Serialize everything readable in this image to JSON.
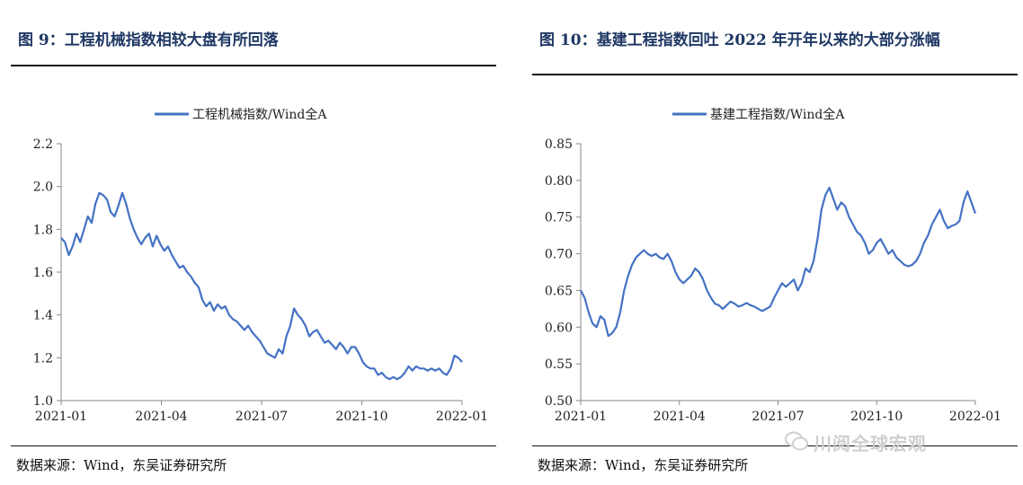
{
  "left_panel": {
    "title": "图 9：工程机械指数相较大盘有所回落",
    "source": "数据来源：Wind，东吴证券研究所"
  },
  "right_panel": {
    "title": "图 10：基建工程指数回吐 2022 年开年以来的大部分涨幅",
    "source": "数据来源：Wind，东吴证券研究所"
  },
  "watermark": "川阅全球宏观",
  "colors": {
    "line": "#4472c4",
    "title": "#1f3864",
    "axis": "#888888"
  },
  "chart_data": [
    {
      "type": "line",
      "legend": "工程机械指数/Wind全A",
      "legend_position": "top-center",
      "grid": false,
      "ylim": [
        1.0,
        2.2
      ],
      "yticks": [
        "2.2",
        "2.0",
        "1.8",
        "1.6",
        "1.4",
        "1.2",
        "1.0"
      ],
      "xticks": [
        "2021-01",
        "2021-04",
        "2021-07",
        "2021-10",
        "2022-01"
      ],
      "x_start": "2021-01-04",
      "x_end": "2022-01-24",
      "series": [
        {
          "values": [
            1.76,
            1.74,
            1.68,
            1.72,
            1.78,
            1.74,
            1.8,
            1.86,
            1.83,
            1.92,
            1.97,
            1.96,
            1.94,
            1.88,
            1.86,
            1.91,
            1.97,
            1.92,
            1.85,
            1.8,
            1.76,
            1.73,
            1.76,
            1.78,
            1.72,
            1.77,
            1.73,
            1.7,
            1.72,
            1.68,
            1.65,
            1.62,
            1.63,
            1.6,
            1.58,
            1.55,
            1.53,
            1.47,
            1.44,
            1.46,
            1.42,
            1.45,
            1.43,
            1.44,
            1.4,
            1.38,
            1.37,
            1.35,
            1.33,
            1.35,
            1.32,
            1.3,
            1.28,
            1.25,
            1.22,
            1.21,
            1.2,
            1.24,
            1.22,
            1.3,
            1.35,
            1.43,
            1.4,
            1.38,
            1.35,
            1.3,
            1.32,
            1.33,
            1.3,
            1.27,
            1.28,
            1.26,
            1.24,
            1.27,
            1.25,
            1.22,
            1.25,
            1.25,
            1.22,
            1.18,
            1.16,
            1.15,
            1.15,
            1.12,
            1.13,
            1.11,
            1.1,
            1.11,
            1.1,
            1.11,
            1.13,
            1.16,
            1.14,
            1.16,
            1.15,
            1.15,
            1.14,
            1.15,
            1.14,
            1.15,
            1.13,
            1.12,
            1.15,
            1.21,
            1.2,
            1.18
          ]
        }
      ]
    },
    {
      "type": "line",
      "legend": "基建工程指数/Wind全A",
      "legend_position": "top-center",
      "grid": false,
      "ylim": [
        0.5,
        0.85
      ],
      "yticks": [
        "0.85",
        "0.80",
        "0.75",
        "0.70",
        "0.65",
        "0.60",
        "0.55",
        "0.50"
      ],
      "xticks": [
        "2021-01",
        "2021-04",
        "2021-07",
        "2021-10",
        "2022-01"
      ],
      "x_start": "2021-01-04",
      "x_end": "2022-01-24",
      "series": [
        {
          "values": [
            0.65,
            0.64,
            0.62,
            0.605,
            0.6,
            0.615,
            0.61,
            0.588,
            0.592,
            0.6,
            0.62,
            0.65,
            0.67,
            0.685,
            0.695,
            0.7,
            0.705,
            0.7,
            0.697,
            0.7,
            0.695,
            0.693,
            0.7,
            0.69,
            0.675,
            0.665,
            0.66,
            0.665,
            0.67,
            0.68,
            0.675,
            0.665,
            0.65,
            0.64,
            0.632,
            0.63,
            0.625,
            0.63,
            0.635,
            0.632,
            0.628,
            0.63,
            0.633,
            0.63,
            0.628,
            0.625,
            0.622,
            0.625,
            0.628,
            0.64,
            0.65,
            0.66,
            0.655,
            0.66,
            0.665,
            0.65,
            0.66,
            0.68,
            0.675,
            0.69,
            0.72,
            0.76,
            0.78,
            0.79,
            0.775,
            0.76,
            0.77,
            0.765,
            0.75,
            0.74,
            0.73,
            0.725,
            0.715,
            0.7,
            0.705,
            0.715,
            0.72,
            0.71,
            0.7,
            0.705,
            0.695,
            0.69,
            0.685,
            0.683,
            0.685,
            0.69,
            0.7,
            0.715,
            0.725,
            0.74,
            0.75,
            0.76,
            0.745,
            0.735,
            0.738,
            0.74,
            0.745,
            0.77,
            0.785,
            0.77,
            0.755
          ]
        }
      ]
    }
  ]
}
